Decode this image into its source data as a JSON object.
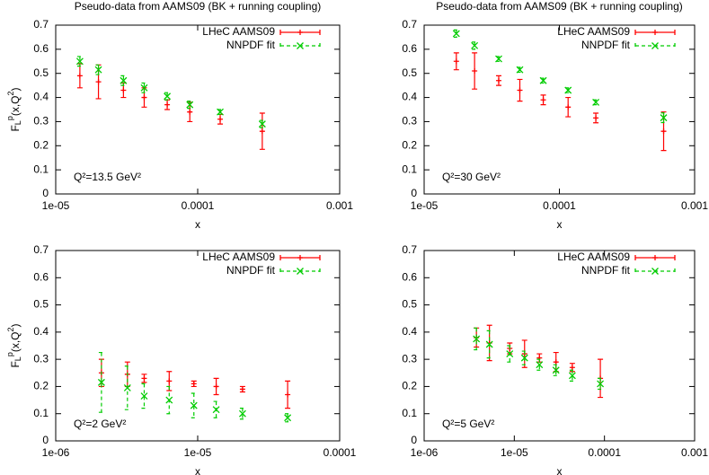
{
  "chart_data": [
    {
      "type": "errorbar",
      "title": "Pseudo-data from AAMS09 (BK + running coupling)",
      "xlabel": "x",
      "ylabel": [
        "F",
        "L",
        "p",
        "(x,Q",
        "2",
        ")"
      ],
      "annotation": "Q²=13.5 GeV²",
      "xlog": true,
      "xlim": [
        1e-05,
        0.001
      ],
      "xticks": [
        {
          "value": 1e-05,
          "label": "1e-05"
        },
        0.0001,
        0.001
      ],
      "ylim": [
        0,
        0.7
      ],
      "yticks": [
        0,
        0.1,
        0.2,
        0.3,
        0.4,
        0.5,
        0.6,
        0.7
      ],
      "legend": "top-right",
      "x": [
        1.48e-05,
        2e-05,
        3e-05,
        4.2e-05,
        6.1e-05,
        8.8e-05,
        0.000144,
        0.000285
      ],
      "series": [
        {
          "name": "LHeC AAMS09",
          "color": "#ff0000",
          "values": [
            0.49,
            0.465,
            0.43,
            0.4,
            0.37,
            0.34,
            0.31,
            0.26
          ],
          "errors": [
            0.05,
            0.07,
            0.03,
            0.04,
            0.02,
            0.04,
            0.02,
            0.075
          ]
        },
        {
          "name": "NNPDF fit",
          "color": "#00cc00",
          "values": [
            0.55,
            0.515,
            0.47,
            0.44,
            0.405,
            0.37,
            0.34,
            0.29
          ],
          "errors": [
            0.02,
            0.02,
            0.02,
            0.02,
            0.015,
            0.015,
            0.01,
            0.015
          ]
        }
      ]
    },
    {
      "type": "errorbar",
      "title": "Pseudo-data from AAMS09 (BK + running coupling)",
      "xlabel": "x",
      "annotation": "Q²=30 GeV²",
      "xlog": true,
      "xlim": [
        1e-05,
        0.001
      ],
      "xticks": [
        {
          "value": 1e-05,
          "label": "1e-05"
        },
        0.0001,
        0.001
      ],
      "ylim": [
        0,
        0.7
      ],
      "yticks": [
        0,
        0.1,
        0.2,
        0.3,
        0.4,
        0.5,
        0.6,
        0.7
      ],
      "legend": "top-right",
      "x": [
        1.73e-05,
        2.36e-05,
        3.56e-05,
        5.1e-05,
        7.6e-05,
        0.000116,
        0.000186,
        0.00059
      ],
      "series": [
        {
          "name": "LHeC AAMS09",
          "color": "#ff0000",
          "values": [
            0.55,
            0.51,
            0.47,
            0.43,
            0.39,
            0.36,
            0.315,
            0.26
          ],
          "errors": [
            0.035,
            0.075,
            0.02,
            0.045,
            0.02,
            0.04,
            0.02,
            0.08
          ]
        },
        {
          "name": "NNPDF fit",
          "color": "#00cc00",
          "values": [
            0.665,
            0.615,
            0.56,
            0.515,
            0.47,
            0.43,
            0.38,
            0.316
          ],
          "errors": [
            0.015,
            0.015,
            0.01,
            0.01,
            0.01,
            0.01,
            0.01,
            0.02
          ]
        }
      ]
    },
    {
      "type": "errorbar",
      "xlabel": "x",
      "ylabel": [
        "F",
        "L",
        "p",
        "(x,Q",
        "2",
        ")"
      ],
      "annotation": "Q²=2 GeV²",
      "xlog": true,
      "xlim": [
        1e-06,
        0.0001
      ],
      "xticks": [
        {
          "value": 1e-06,
          "label": "1e-06"
        },
        {
          "value": 1e-05,
          "label": "1e-05"
        },
        0.0001
      ],
      "ylim": [
        0,
        0.7
      ],
      "yticks": [
        0,
        0.1,
        0.2,
        0.3,
        0.4,
        0.5,
        0.6,
        0.7
      ],
      "legend": "top-right",
      "x": [
        2.1e-06,
        3.2e-06,
        4.2e-06,
        6.3e-06,
        9.4e-06,
        1.35e-05,
        2.07e-05,
        4.3e-05
      ],
      "series": [
        {
          "name": "LHeC AAMS09",
          "color": "#ff0000",
          "values": [
            0.25,
            0.245,
            0.23,
            0.22,
            0.21,
            0.2,
            0.19,
            0.17
          ],
          "errors": [
            0.05,
            0.045,
            0.015,
            0.035,
            0.01,
            0.03,
            0.01,
            0.05
          ]
        },
        {
          "name": "NNPDF fit",
          "color": "#00cc00",
          "values": [
            0.215,
            0.195,
            0.165,
            0.15,
            0.13,
            0.115,
            0.1,
            0.085
          ],
          "errors": [
            0.11,
            0.08,
            0.045,
            0.05,
            0.045,
            0.03,
            0.02,
            0.015
          ]
        }
      ]
    },
    {
      "type": "errorbar",
      "xlabel": "x",
      "annotation": "Q²=5 GeV²",
      "xlog": true,
      "xlim": [
        1e-06,
        0.001
      ],
      "xticks": [
        {
          "value": 1e-06,
          "label": "1e-06"
        },
        {
          "value": 1e-05,
          "label": "1e-05"
        },
        0.0001,
        0.001
      ],
      "ylim": [
        0,
        0.7
      ],
      "yticks": [
        0,
        0.1,
        0.2,
        0.3,
        0.4,
        0.5,
        0.6,
        0.7
      ],
      "legend": "top-right",
      "x": [
        3.8e-06,
        5.3e-06,
        8.9e-06,
        1.3e-05,
        1.9e-05,
        2.9e-05,
        4.4e-05,
        9e-05
      ],
      "series": [
        {
          "name": "LHeC AAMS09",
          "color": "#ff0000",
          "values": [
            0.38,
            0.36,
            0.34,
            0.32,
            0.305,
            0.29,
            0.27,
            0.23
          ],
          "errors": [
            0.035,
            0.065,
            0.02,
            0.05,
            0.015,
            0.035,
            0.015,
            0.07
          ]
        },
        {
          "name": "NNPDF fit",
          "color": "#00cc00",
          "values": [
            0.375,
            0.355,
            0.32,
            0.305,
            0.28,
            0.26,
            0.24,
            0.21
          ],
          "errors": [
            0.04,
            0.05,
            0.03,
            0.025,
            0.02,
            0.02,
            0.02,
            0.02
          ]
        }
      ]
    }
  ]
}
